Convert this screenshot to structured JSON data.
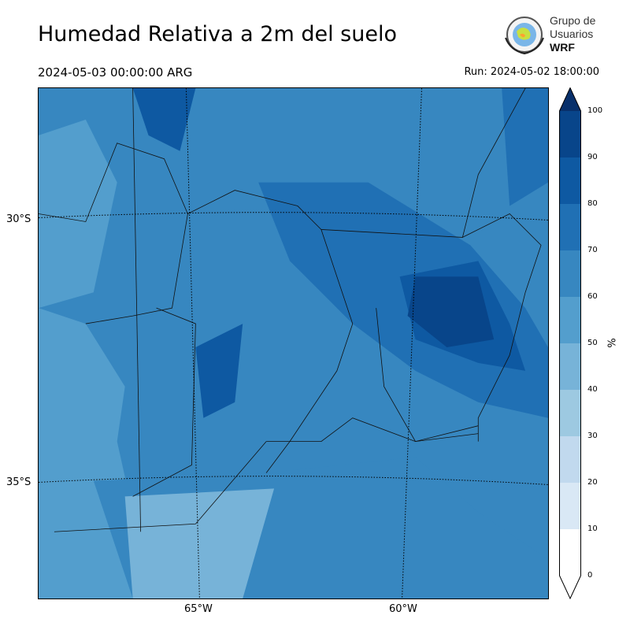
{
  "title": "Humedad Relativa a 2m del suelo",
  "valid_time": "2024-05-03 00:00:00 ARG",
  "run": "Run: 2024-05-02 18:00:00",
  "logo": {
    "line1": "Grupo de",
    "line2": "Usuarios",
    "line3": "WRF"
  },
  "lat_labels": [
    "30°S",
    "35°S"
  ],
  "lon_labels": [
    "65°W",
    "60°W"
  ],
  "colorbar": {
    "unit": "%",
    "ticks": [
      "0",
      "10",
      "20",
      "30",
      "40",
      "50",
      "60",
      "70",
      "80",
      "90",
      "100"
    ],
    "colors": [
      "#ffffff",
      "#d9e8f5",
      "#c1d9ee",
      "#9dc9e1",
      "#77b3d8",
      "#539ecd",
      "#3787c0",
      "#2070b4",
      "#0e59a2",
      "#08458a"
    ],
    "over_color": "#08306b"
  },
  "colormap": "Blues"
}
